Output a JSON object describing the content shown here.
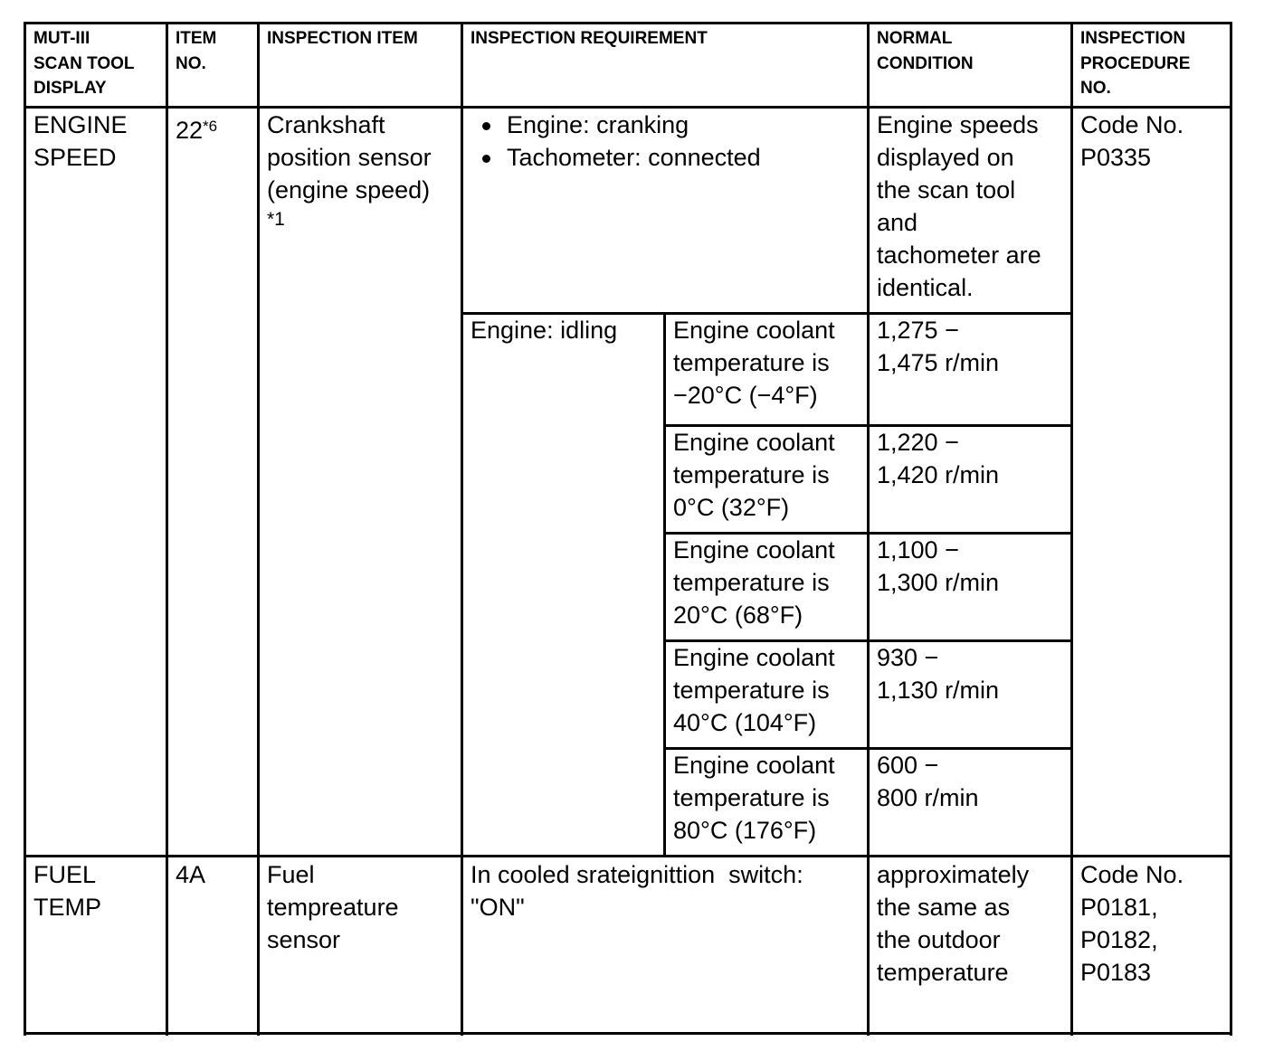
{
  "headers": {
    "display": [
      "MUT-III",
      "SCAN TOOL",
      "DISPLAY"
    ],
    "item_no": [
      "ITEM",
      "NO."
    ],
    "inspection_item": "INSPECTION ITEM",
    "requirement": "INSPECTION REQUIREMENT",
    "normal": [
      "NORMAL",
      "CONDITION"
    ],
    "procedure": [
      "INSPECTION",
      "PROCEDURE",
      "NO."
    ]
  },
  "rows": [
    {
      "display": [
        "ENGINE",
        "SPEED"
      ],
      "item_no": "22",
      "item_no_sup": "*6",
      "inspection_item": [
        "Crankshaft",
        "position sensor",
        "(engine speed)"
      ],
      "inspection_item_note": "*1",
      "requirement_bullets": [
        "Engine: cranking",
        "Tachometer: connected"
      ],
      "normal": [
        "Engine speeds",
        "displayed on",
        "the scan tool",
        "and",
        "tachometer are",
        "identical."
      ],
      "procedure": [
        "Code No.",
        "P0335"
      ],
      "idle_label": "Engine: idling",
      "idle_conditions": [
        {
          "condition": [
            "Engine coolant",
            "temperature is",
            "−20°C (−4°F)"
          ],
          "normal": [
            "1,275 −",
            "1,475 r/min"
          ]
        },
        {
          "condition": [
            "Engine coolant",
            "temperature is",
            "0°C (32°F)"
          ],
          "normal": [
            "1,220 −",
            "1,420 r/min"
          ]
        },
        {
          "condition": [
            "Engine coolant",
            "temperature is",
            "20°C (68°F)"
          ],
          "normal": [
            "1,100 −",
            "1,300 r/min"
          ]
        },
        {
          "condition": [
            "Engine coolant",
            "temperature is",
            "40°C (104°F)"
          ],
          "normal": [
            "930 −",
            "1,130 r/min"
          ]
        },
        {
          "condition": [
            "Engine coolant",
            "temperature is",
            "80°C (176°F)"
          ],
          "normal": [
            "600 −",
            "800 r/min"
          ]
        }
      ]
    },
    {
      "display": [
        "FUEL",
        "TEMP"
      ],
      "item_no": "4A",
      "inspection_item": [
        "Fuel",
        "tempreature",
        "sensor"
      ],
      "requirement": [
        "In cooled srateignittion  switch:",
        "\"ON\""
      ],
      "normal": [
        "approximately",
        "the same as",
        "the outdoor",
        "temperature"
      ],
      "procedure": [
        "Code No.",
        "P0181,",
        "P0182,",
        "P0183"
      ]
    }
  ]
}
